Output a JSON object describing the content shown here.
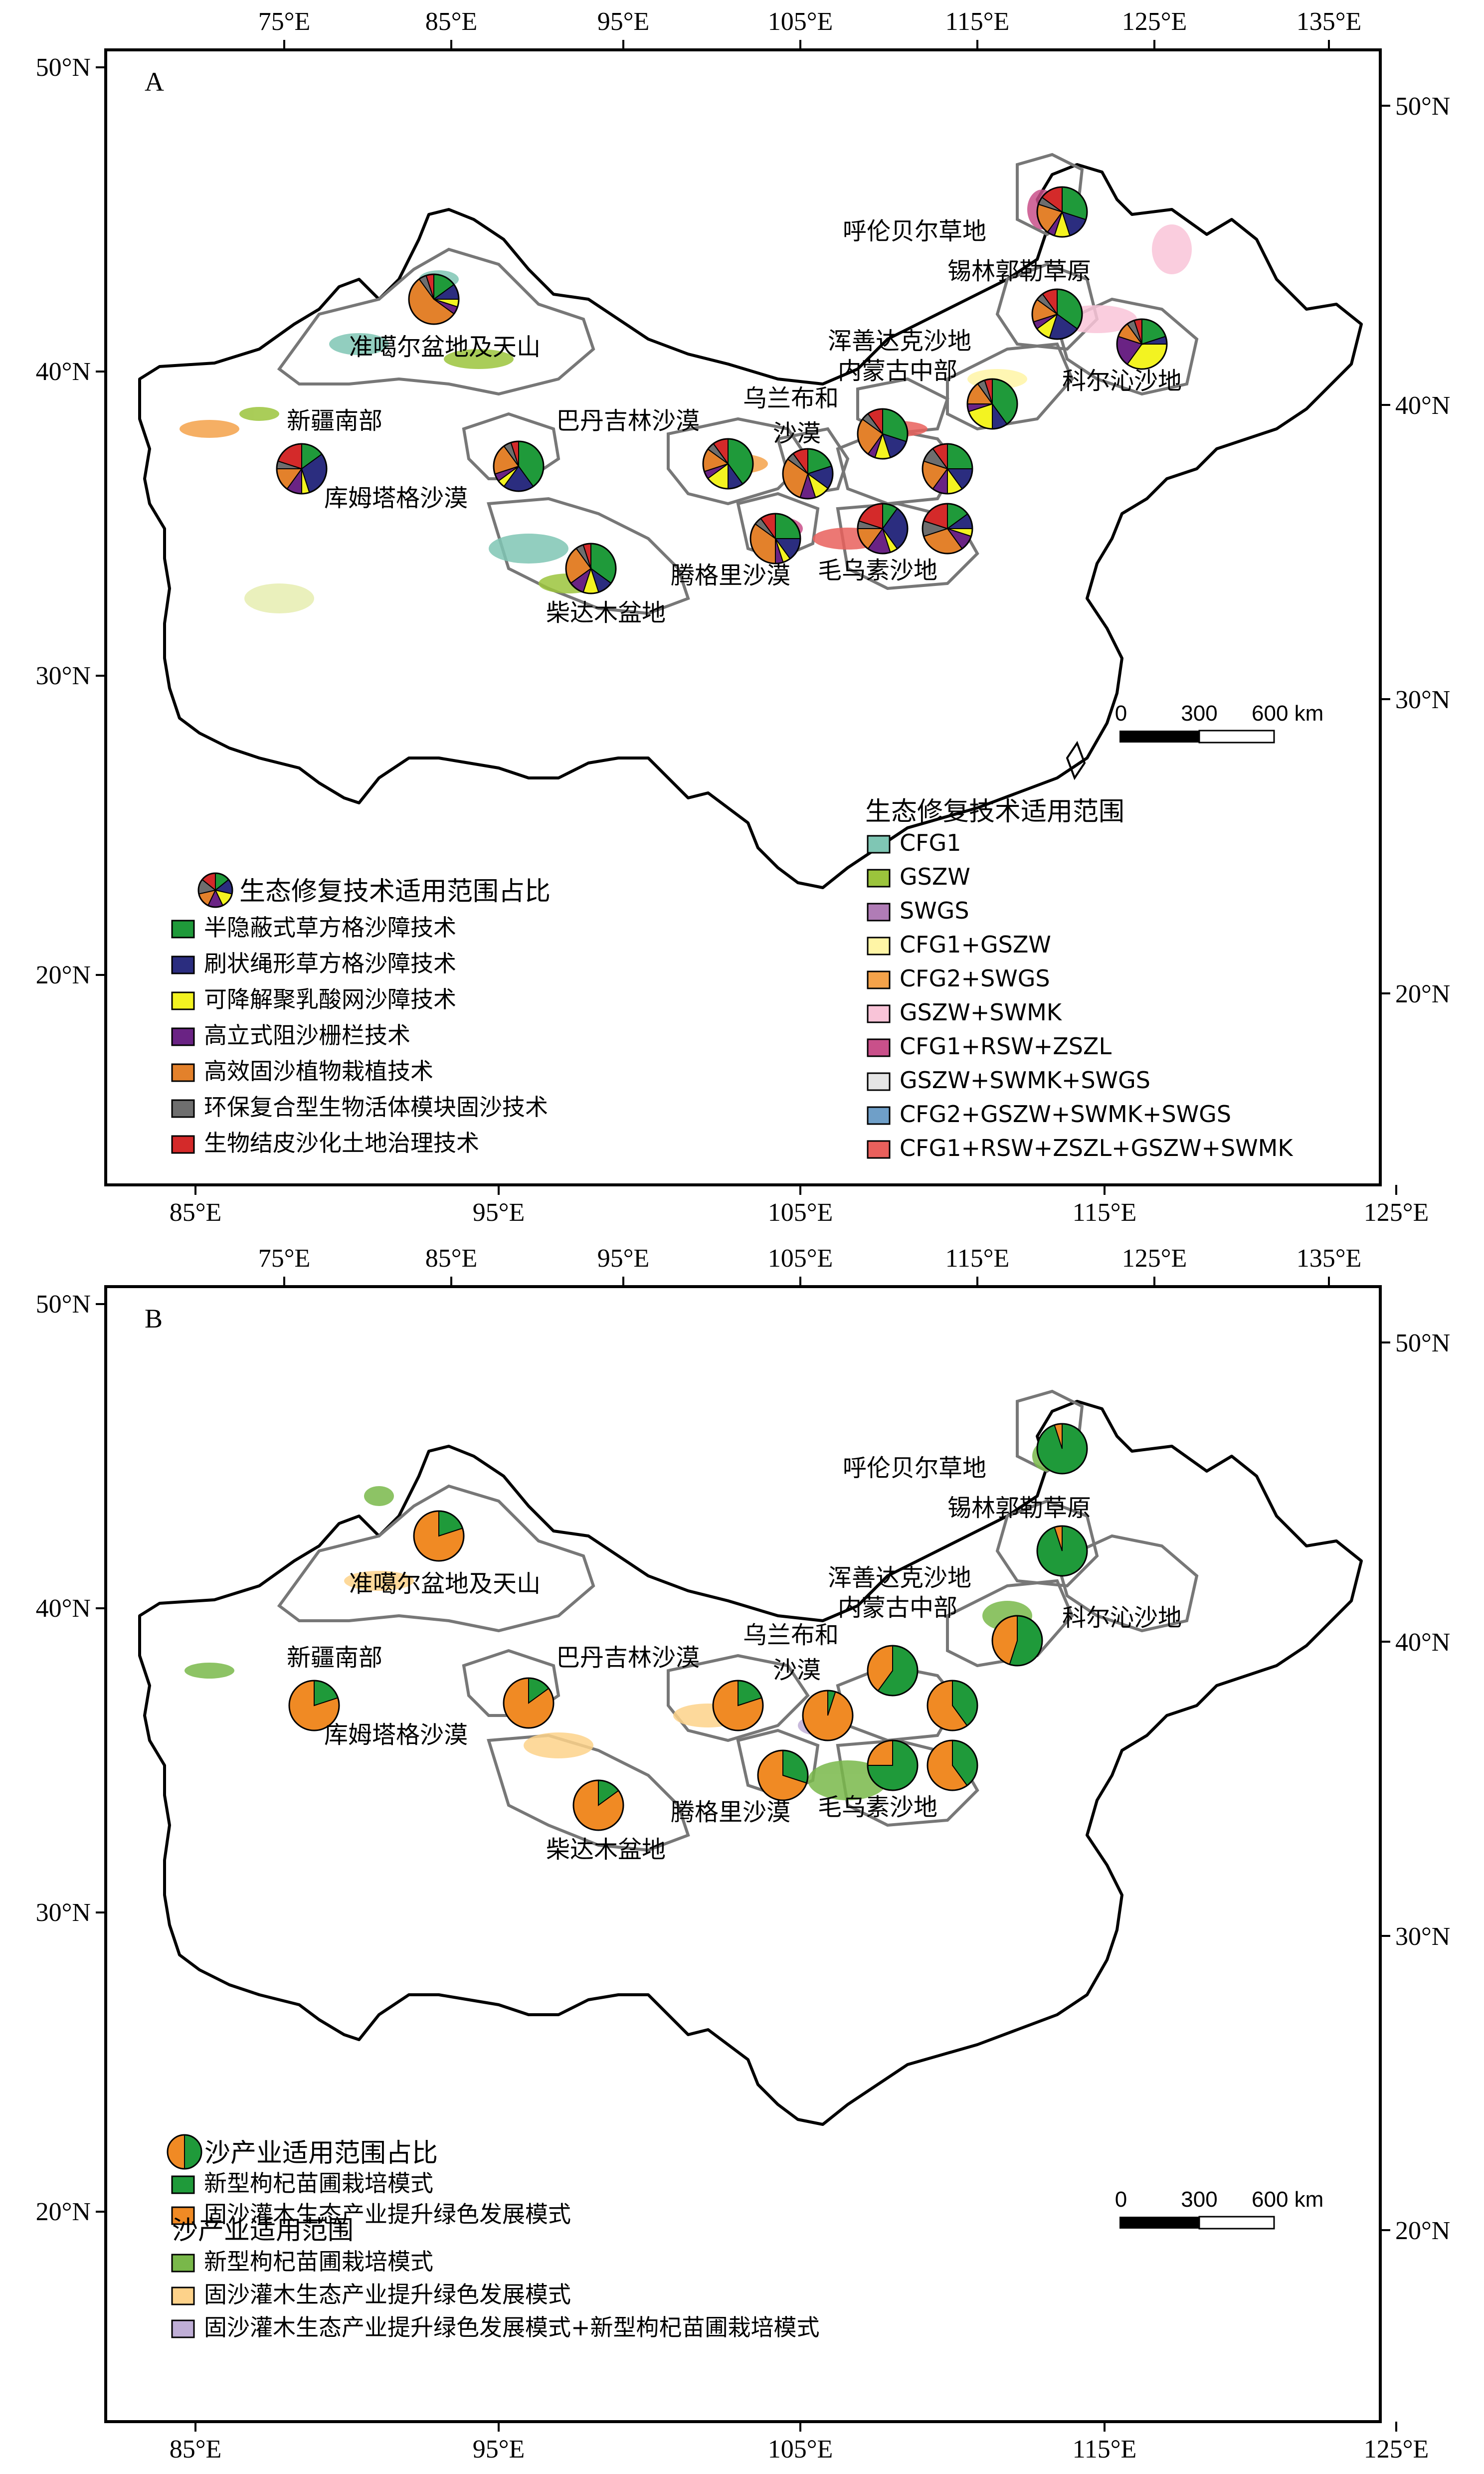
{
  "panelA": {
    "label": "A",
    "top_lon_ticks": [
      "75°E",
      "85°E",
      "95°E",
      "105°E",
      "115°E",
      "125°E",
      "135°E"
    ],
    "bottom_lon_ticks": [
      "85°E",
      "95°E",
      "105°E",
      "115°E",
      "125°E"
    ],
    "left_lat_ticks": [
      "50°N",
      "40°N",
      "30°N",
      "20°N"
    ],
    "right_lat_ticks": [
      "50°N",
      "40°N",
      "30°N",
      "20°N"
    ],
    "regions": [
      "呼伦贝尔草地",
      "锡林郭勒草原",
      "浑善达克沙地",
      "内蒙古中部",
      "科尔沁沙地",
      "准噶尔盆地及天山",
      "新疆南部",
      "库姆塔格沙漠",
      "巴丹吉林沙漠",
      "乌兰布和",
      "沙漠",
      "腾格里沙漠",
      "毛乌素沙地",
      "柴达木盆地"
    ],
    "scale": {
      "zero": "0",
      "mid": "300",
      "end": "600 km"
    },
    "pie_legend": {
      "title": "生态修复技术适用范围占比",
      "items": [
        {
          "label": "半隐蔽式草方格沙障技术",
          "color": "#1f9a3a"
        },
        {
          "label": "刷状绳形草方格沙障技术",
          "color": "#2b2d7f"
        },
        {
          "label": "可降解聚乳酸网沙障技术",
          "color": "#f3f321"
        },
        {
          "label": "高立式阻沙栅栏技术",
          "color": "#6a2384"
        },
        {
          "label": "高效固沙植物栽植技术",
          "color": "#e3812b"
        },
        {
          "label": "环保复合型生物活体模块固沙技术",
          "color": "#6e6e6e"
        },
        {
          "label": "生物结皮沙化土地治理技术",
          "color": "#d42a2a"
        }
      ]
    },
    "range_legend": {
      "title": "生态修复技术适用范围",
      "items": [
        {
          "label": "CFG1",
          "color": "#7fc6b4"
        },
        {
          "label": "GSZW",
          "color": "#9bc43c"
        },
        {
          "label": "SWGS",
          "color": "#b07cb6"
        },
        {
          "label": "CFG1+GSZW",
          "color": "#fff5a6"
        },
        {
          "label": "CFG2+SWGS",
          "color": "#f4a24a"
        },
        {
          "label": "GSZW+SWMK",
          "color": "#f9c4d8"
        },
        {
          "label": "CFG1+RSW+ZSZL",
          "color": "#c9508a"
        },
        {
          "label": "GSZW+SWMK+SWGS",
          "color": "#e5e5e5"
        },
        {
          "label": "CFG2+GSZW+SWMK+SWGS",
          "color": "#6f9fc8"
        },
        {
          "label": "CFG1+RSW+ZSZL+GSZW+SWMK",
          "color": "#e9605c"
        }
      ]
    }
  },
  "panelB": {
    "label": "B",
    "top_lon_ticks": [
      "75°E",
      "85°E",
      "95°E",
      "105°E",
      "115°E",
      "125°E",
      "135°E"
    ],
    "bottom_lon_ticks": [
      "85°E",
      "95°E",
      "105°E",
      "115°E",
      "125°E"
    ],
    "left_lat_ticks": [
      "50°N",
      "40°N",
      "30°N",
      "20°N"
    ],
    "right_lat_ticks": [
      "50°N",
      "40°N",
      "30°N",
      "20°N"
    ],
    "regions": [
      "呼伦贝尔草地",
      "锡林郭勒草原",
      "浑善达克沙地",
      "内蒙古中部",
      "科尔沁沙地",
      "准噶尔盆地及天山",
      "新疆南部",
      "库姆塔格沙漠",
      "巴丹吉林沙漠",
      "乌兰布和",
      "沙漠",
      "腾格里沙漠",
      "毛乌素沙地",
      "柴达木盆地"
    ],
    "scale": {
      "zero": "0",
      "mid": "300",
      "end": "600 km"
    },
    "pie_legend": {
      "title": "沙产业适用范围占比",
      "items": [
        {
          "label": "新型枸杞苗圃栽培模式",
          "color": "#1f9a3a"
        },
        {
          "label": "固沙灌木生态产业提升绿色发展模式",
          "color": "#f08a24"
        }
      ]
    },
    "range_legend": {
      "title": "沙产业适用范围",
      "items": [
        {
          "label": "新型枸杞苗圃栽培模式",
          "color": "#79b84a"
        },
        {
          "label": "固沙灌木生态产业提升绿色发展模式",
          "color": "#fdd28a"
        },
        {
          "label": "固沙灌木生态产业提升绿色发展模式+新型枸杞苗圃栽培模式",
          "color": "#bfaed6"
        }
      ]
    }
  }
}
